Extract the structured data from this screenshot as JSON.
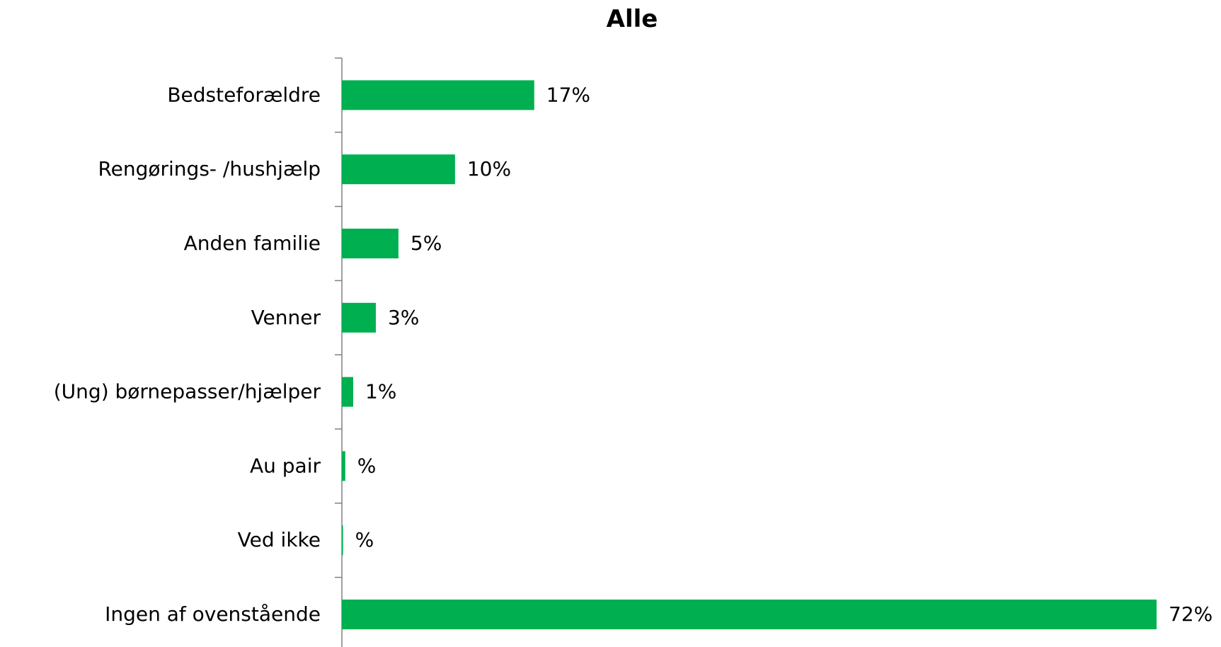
{
  "chart_data": {
    "type": "bar",
    "orientation": "horizontal",
    "title": "Alle",
    "categories": [
      "Bedsteforældre",
      "Rengørings- /hushjælp",
      "Anden familie",
      "Venner",
      "(Ung) børnepasser/hjælper",
      "Au pair",
      "Ved ikke",
      "Ingen af ovenstående"
    ],
    "values": [
      17,
      10,
      5,
      3,
      1,
      0.3,
      0.1,
      72
    ],
    "value_labels": [
      "17%",
      "10%",
      "5%",
      "3%",
      "1%",
      "%",
      "%",
      "72%"
    ],
    "xlim": [
      0,
      72
    ],
    "bar_color": "#00B050",
    "grid": false,
    "legend": "none"
  }
}
